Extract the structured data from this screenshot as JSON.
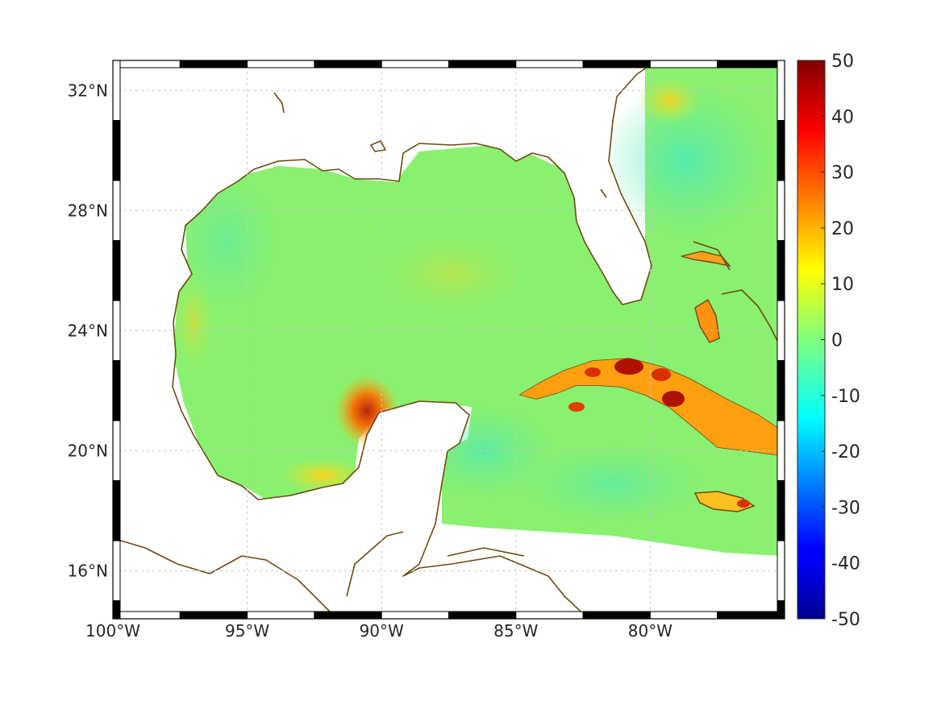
{
  "map": {
    "lon_range": [
      -100,
      -75
    ],
    "lat_range": [
      14.4,
      33
    ],
    "lon_ticks": [
      {
        "value": -100,
        "label": "100°W"
      },
      {
        "value": -95,
        "label": "95°W"
      },
      {
        "value": -90,
        "label": "90°W"
      },
      {
        "value": -85,
        "label": "85°W"
      },
      {
        "value": -80,
        "label": "80°W"
      }
    ],
    "lat_ticks": [
      {
        "value": 16,
        "label": "16°N"
      },
      {
        "value": 20,
        "label": "20°N"
      },
      {
        "value": 24,
        "label": "24°N"
      },
      {
        "value": 28,
        "label": "28°N"
      },
      {
        "value": 32,
        "label": "32°N"
      }
    ],
    "grid": true,
    "colormap": "jet",
    "coastline_color": "#6b4a10",
    "background_field_color": "#7ff07a"
  },
  "colorbar": {
    "range": [
      -50,
      50
    ],
    "ticks": [
      {
        "value": 50,
        "label": "50"
      },
      {
        "value": 40,
        "label": "40"
      },
      {
        "value": 30,
        "label": "30"
      },
      {
        "value": 20,
        "label": "20"
      },
      {
        "value": 10,
        "label": "10"
      },
      {
        "value": 0,
        "label": "0"
      },
      {
        "value": -10,
        "label": "-10"
      },
      {
        "value": -20,
        "label": "-20"
      },
      {
        "value": -30,
        "label": "-30"
      },
      {
        "value": -40,
        "label": "-40"
      },
      {
        "value": -50,
        "label": "-50"
      }
    ],
    "placement": "right"
  }
}
